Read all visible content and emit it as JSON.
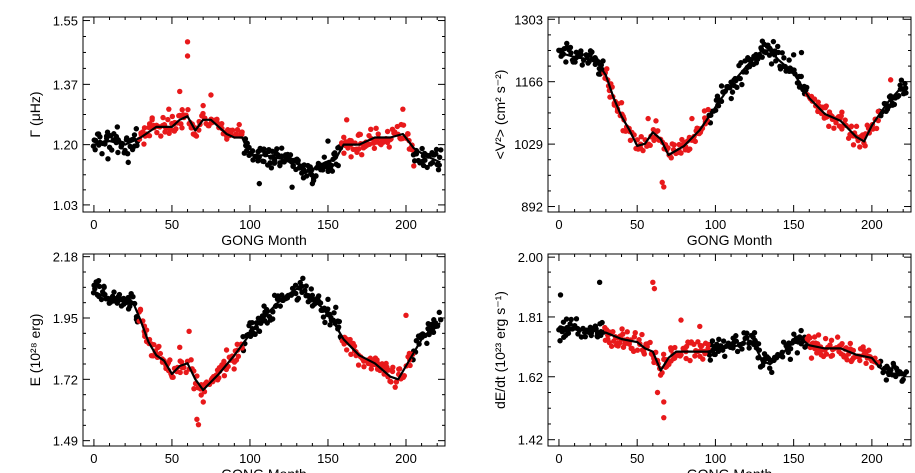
{
  "chart_data": [
    {
      "type": "scatter",
      "xlabel": "GONG Month",
      "ylabel": "Γ (μHz)",
      "xlim": [
        -7,
        225
      ],
      "ylim": [
        1.01,
        1.56
      ],
      "x_ticks": [
        0,
        50,
        100,
        150,
        200
      ],
      "y_ticks": [
        1.03,
        1.2,
        1.37,
        1.55
      ],
      "y_tick_labels": [
        "1.03",
        "1.20",
        "1.37",
        "1.55"
      ],
      "series": [
        {
          "color": "#000000",
          "ranges": [
            [
              0,
              28
            ],
            [
              96,
              158
            ],
            [
              205,
              222
            ]
          ],
          "points": [
            [
              3,
              1.23
            ],
            [
              9,
              1.16
            ],
            [
              15,
              1.25
            ],
            [
              22,
              1.15
            ],
            [
              140,
              1.09
            ],
            [
              127,
              1.08
            ],
            [
              150,
              1.21
            ],
            [
              106,
              1.09
            ]
          ]
        },
        {
          "color": "#e8191b",
          "ranges": [
            [
              29,
              95
            ],
            [
              159,
              204
            ]
          ],
          "points": [
            [
              60,
              1.49
            ],
            [
              60,
              1.45
            ],
            [
              55,
              1.35
            ],
            [
              75,
              1.34
            ],
            [
              70,
              1.31
            ],
            [
              48,
              1.3
            ],
            [
              198,
              1.3
            ],
            [
              205,
              1.14
            ],
            [
              162,
              1.27
            ]
          ]
        }
      ],
      "trend_line": [
        [
          0,
          1.2
        ],
        [
          10,
          1.21
        ],
        [
          20,
          1.2
        ],
        [
          30,
          1.22
        ],
        [
          40,
          1.25
        ],
        [
          50,
          1.25
        ],
        [
          55,
          1.27
        ],
        [
          60,
          1.28
        ],
        [
          65,
          1.24
        ],
        [
          70,
          1.27
        ],
        [
          75,
          1.27
        ],
        [
          80,
          1.25
        ],
        [
          85,
          1.23
        ],
        [
          90,
          1.22
        ],
        [
          95,
          1.22
        ],
        [
          100,
          1.17
        ],
        [
          110,
          1.17
        ],
        [
          120,
          1.16
        ],
        [
          130,
          1.15
        ],
        [
          135,
          1.12
        ],
        [
          140,
          1.13
        ],
        [
          148,
          1.15
        ],
        [
          155,
          1.16
        ],
        [
          160,
          1.2
        ],
        [
          170,
          1.2
        ],
        [
          180,
          1.22
        ],
        [
          190,
          1.22
        ],
        [
          198,
          1.23
        ],
        [
          205,
          1.19
        ],
        [
          212,
          1.17
        ],
        [
          222,
          1.15
        ]
      ]
    },
    {
      "type": "scatter",
      "xlabel": "GONG Month",
      "ylabel": "<V²> (cm² s⁻²)",
      "xlim": [
        -7,
        225
      ],
      "ylim": [
        880,
        1308
      ],
      "x_ticks": [
        0,
        50,
        100,
        150,
        200
      ],
      "y_ticks": [
        892,
        1029,
        1166,
        1303
      ],
      "y_tick_labels": [
        "892",
        "1029",
        "1166",
        "1303"
      ],
      "series": [
        {
          "color": "#000000",
          "ranges": [
            [
              0,
              28
            ],
            [
              96,
              158
            ],
            [
              205,
              222
            ]
          ],
          "points": [
            [
              155,
              1230
            ],
            [
              150,
              1225
            ],
            [
              5,
              1250
            ],
            [
              130,
              1255
            ],
            [
              110,
              1165
            ]
          ]
        },
        {
          "color": "#e8191b",
          "ranges": [
            [
              29,
              95
            ],
            [
              159,
              204
            ]
          ],
          "points": [
            [
              67,
              935
            ],
            [
              66,
              945
            ],
            [
              57,
              1085
            ],
            [
              62,
              1080
            ],
            [
              212,
              1170
            ],
            [
              40,
              1120
            ],
            [
              85,
              1085
            ]
          ]
        }
      ],
      "trend_line": [
        [
          0,
          1230
        ],
        [
          10,
          1220
        ],
        [
          20,
          1215
        ],
        [
          25,
          1205
        ],
        [
          30,
          1180
        ],
        [
          35,
          1130
        ],
        [
          40,
          1090
        ],
        [
          45,
          1060
        ],
        [
          50,
          1025
        ],
        [
          55,
          1030
        ],
        [
          60,
          1055
        ],
        [
          65,
          1040
        ],
        [
          70,
          1005
        ],
        [
          75,
          1015
        ],
        [
          80,
          1025
        ],
        [
          90,
          1060
        ],
        [
          100,
          1110
        ],
        [
          110,
          1160
        ],
        [
          120,
          1200
        ],
        [
          130,
          1235
        ],
        [
          135,
          1235
        ],
        [
          140,
          1215
        ],
        [
          150,
          1185
        ],
        [
          160,
          1130
        ],
        [
          170,
          1095
        ],
        [
          180,
          1080
        ],
        [
          190,
          1045
        ],
        [
          195,
          1035
        ],
        [
          200,
          1070
        ],
        [
          210,
          1120
        ],
        [
          218,
          1150
        ],
        [
          222,
          1150
        ]
      ]
    },
    {
      "type": "scatter",
      "xlabel": "GONG Month",
      "ylabel": "E (10²⁸ erg)",
      "xlim": [
        -7,
        225
      ],
      "ylim": [
        1.47,
        2.19
      ],
      "x_ticks": [
        0,
        50,
        100,
        150,
        200
      ],
      "y_ticks": [
        1.49,
        1.72,
        1.95,
        2.18
      ],
      "y_tick_labels": [
        "1.49",
        "1.72",
        "1.95",
        "2.18"
      ],
      "series": [
        {
          "color": "#000000",
          "ranges": [
            [
              0,
              28
            ],
            [
              96,
              158
            ],
            [
              205,
              222
            ]
          ],
          "points": [
            [
              3,
              2.09
            ],
            [
              150,
              2.02
            ],
            [
              155,
              1.99
            ]
          ]
        },
        {
          "color": "#e8191b",
          "ranges": [
            [
              29,
              95
            ],
            [
              159,
              204
            ]
          ],
          "points": [
            [
              67,
              1.55
            ],
            [
              66,
              1.57
            ],
            [
              61,
              1.9
            ],
            [
              55,
              1.84
            ],
            [
              200,
              1.96
            ],
            [
              85,
              1.83
            ]
          ]
        }
      ],
      "trend_line": [
        [
          0,
          2.05
        ],
        [
          10,
          2.02
        ],
        [
          20,
          2.02
        ],
        [
          25,
          2.01
        ],
        [
          30,
          1.94
        ],
        [
          35,
          1.86
        ],
        [
          40,
          1.81
        ],
        [
          45,
          1.79
        ],
        [
          50,
          1.74
        ],
        [
          55,
          1.77
        ],
        [
          60,
          1.78
        ],
        [
          65,
          1.72
        ],
        [
          70,
          1.68
        ],
        [
          75,
          1.71
        ],
        [
          80,
          1.74
        ],
        [
          90,
          1.81
        ],
        [
          100,
          1.89
        ],
        [
          110,
          1.96
        ],
        [
          120,
          2.02
        ],
        [
          130,
          2.06
        ],
        [
          135,
          2.05
        ],
        [
          140,
          2.02
        ],
        [
          150,
          1.97
        ],
        [
          160,
          1.87
        ],
        [
          170,
          1.81
        ],
        [
          180,
          1.78
        ],
        [
          190,
          1.73
        ],
        [
          195,
          1.72
        ],
        [
          200,
          1.77
        ],
        [
          210,
          1.87
        ],
        [
          218,
          1.92
        ],
        [
          222,
          1.93
        ]
      ]
    },
    {
      "type": "scatter",
      "xlabel": "GONG Month",
      "ylabel": "dE/dt (10²³ erg s⁻¹)",
      "xlim": [
        -7,
        225
      ],
      "ylim": [
        1.4,
        2.01
      ],
      "x_ticks": [
        0,
        50,
        100,
        150,
        200
      ],
      "y_ticks": [
        1.42,
        1.62,
        1.81,
        2.0
      ],
      "y_tick_labels": [
        "1.42",
        "1.62",
        "1.81",
        "2.00"
      ],
      "series": [
        {
          "color": "#000000",
          "ranges": [
            [
              0,
              28
            ],
            [
              96,
              158
            ],
            [
              205,
              222
            ]
          ],
          "points": [
            [
              26,
              1.92
            ],
            [
              1,
              1.88
            ],
            [
              125,
              1.76
            ]
          ]
        },
        {
          "color": "#e8191b",
          "ranges": [
            [
              29,
              95
            ],
            [
              159,
              204
            ]
          ],
          "points": [
            [
              60,
              1.92
            ],
            [
              61,
              1.9
            ],
            [
              67,
              1.49
            ],
            [
              67,
              1.54
            ],
            [
              63,
              1.57
            ],
            [
              78,
              1.8
            ],
            [
              90,
              1.78
            ]
          ]
        }
      ],
      "trend_line": [
        [
          0,
          1.78
        ],
        [
          10,
          1.77
        ],
        [
          20,
          1.77
        ],
        [
          30,
          1.76
        ],
        [
          40,
          1.74
        ],
        [
          50,
          1.73
        ],
        [
          55,
          1.71
        ],
        [
          60,
          1.7
        ],
        [
          65,
          1.64
        ],
        [
          70,
          1.68
        ],
        [
          75,
          1.7
        ],
        [
          85,
          1.7
        ],
        [
          95,
          1.7
        ],
        [
          105,
          1.71
        ],
        [
          115,
          1.72
        ],
        [
          120,
          1.74
        ],
        [
          125,
          1.72
        ],
        [
          130,
          1.67
        ],
        [
          135,
          1.66
        ],
        [
          140,
          1.68
        ],
        [
          150,
          1.73
        ],
        [
          155,
          1.74
        ],
        [
          160,
          1.72
        ],
        [
          170,
          1.71
        ],
        [
          180,
          1.71
        ],
        [
          190,
          1.69
        ],
        [
          200,
          1.68
        ],
        [
          205,
          1.65
        ],
        [
          210,
          1.63
        ],
        [
          222,
          1.63
        ]
      ]
    }
  ]
}
